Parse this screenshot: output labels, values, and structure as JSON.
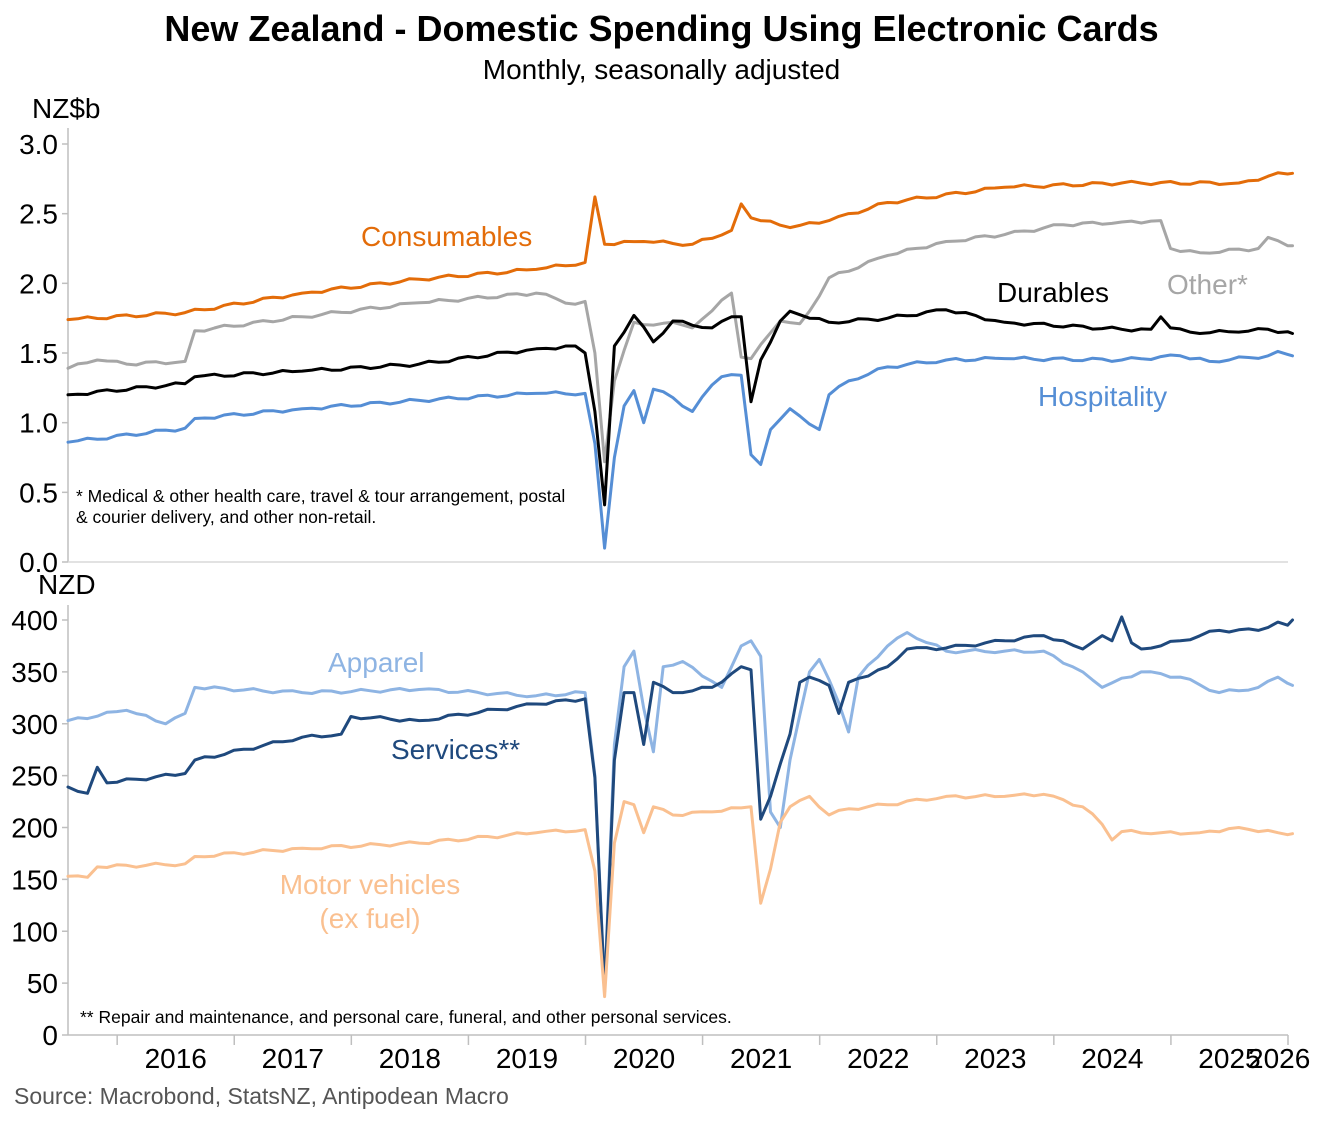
{
  "title": "New Zealand - Domestic Spending Using Electronic Cards",
  "subtitle": "Monthly, seasonally adjusted",
  "source": "Source: Macrobond, StatsNZ, Antipodean Macro",
  "colors": {
    "consumables": "#E36C09",
    "other": "#A6A6A6",
    "durables": "#000000",
    "hospitality": "#558ED5",
    "apparel": "#8EB4E3",
    "services": "#1F497D",
    "motor": "#FAC090",
    "axis": "#BFBFBF"
  },
  "chart_data": [
    {
      "type": "line",
      "panel": "top",
      "ylabel": "NZ$b",
      "ylim": [
        0,
        3.0
      ],
      "yticks": [
        "0.0",
        "0.5",
        "1.0",
        "1.5",
        "2.0",
        "2.5",
        "3.0"
      ],
      "x_start": "2015-08",
      "xlim": [
        2015.58,
        2026.0
      ],
      "footnote": "* Medical & other health care, travel & tour arrangement, postal & courier delivery, and other non-retail.",
      "series": [
        {
          "name": "Consumables",
          "key": "consumables",
          "anchors": [
            [
              0,
              1.74
            ],
            [
              12,
              1.79
            ],
            [
              24,
              1.93
            ],
            [
              36,
              2.03
            ],
            [
              48,
              2.1
            ],
            [
              53,
              2.15
            ],
            [
              54,
              2.62
            ],
            [
              55,
              2.28
            ],
            [
              59,
              2.3
            ],
            [
              64,
              2.28
            ],
            [
              68,
              2.38
            ],
            [
              69,
              2.57
            ],
            [
              70,
              2.47
            ],
            [
              74,
              2.4
            ],
            [
              78,
              2.45
            ],
            [
              84,
              2.58
            ],
            [
              96,
              2.69
            ],
            [
              108,
              2.72
            ],
            [
              120,
              2.72
            ],
            [
              124.5,
              2.79
            ],
            [
              125.5,
              2.79
            ]
          ]
        },
        {
          "name": "Other*",
          "key": "other",
          "anchors": [
            [
              0,
              1.39
            ],
            [
              3,
              1.45
            ],
            [
              6,
              1.42
            ],
            [
              12,
              1.44
            ],
            [
              13,
              1.66
            ],
            [
              24,
              1.76
            ],
            [
              36,
              1.86
            ],
            [
              48,
              1.93
            ],
            [
              52,
              1.85
            ],
            [
              53,
              1.87
            ],
            [
              54,
              1.5
            ],
            [
              55,
              0.72
            ],
            [
              56,
              1.3
            ],
            [
              58,
              1.72
            ],
            [
              60,
              1.7
            ],
            [
              62,
              1.72
            ],
            [
              64,
              1.68
            ],
            [
              67,
              1.88
            ],
            [
              68,
              1.93
            ],
            [
              69,
              1.47
            ],
            [
              70,
              1.46
            ],
            [
              73,
              1.73
            ],
            [
              75,
              1.71
            ],
            [
              76,
              1.8
            ],
            [
              78,
              2.04
            ],
            [
              84,
              2.2
            ],
            [
              90,
              2.3
            ],
            [
              96,
              2.35
            ],
            [
              102,
              2.42
            ],
            [
              108,
              2.44
            ],
            [
              112,
              2.45
            ],
            [
              113,
              2.25
            ],
            [
              116,
              2.22
            ],
            [
              122,
              2.25
            ],
            [
              123,
              2.33
            ],
            [
              125.5,
              2.27
            ]
          ]
        },
        {
          "name": "Durables",
          "key": "durables",
          "anchors": [
            [
              0,
              1.2
            ],
            [
              12,
              1.28
            ],
            [
              13,
              1.33
            ],
            [
              24,
              1.37
            ],
            [
              36,
              1.42
            ],
            [
              48,
              1.53
            ],
            [
              52,
              1.55
            ],
            [
              53,
              1.5
            ],
            [
              54,
              1.08
            ],
            [
              55,
              0.41
            ],
            [
              56,
              1.55
            ],
            [
              58,
              1.77
            ],
            [
              60,
              1.58
            ],
            [
              62,
              1.73
            ],
            [
              66,
              1.68
            ],
            [
              68,
              1.76
            ],
            [
              69,
              1.76
            ],
            [
              70,
              1.15
            ],
            [
              71,
              1.45
            ],
            [
              73,
              1.73
            ],
            [
              74,
              1.8
            ],
            [
              78,
              1.72
            ],
            [
              84,
              1.75
            ],
            [
              90,
              1.81
            ],
            [
              96,
              1.72
            ],
            [
              108,
              1.67
            ],
            [
              111,
              1.67
            ],
            [
              112,
              1.76
            ],
            [
              113,
              1.68
            ],
            [
              115,
              1.65
            ],
            [
              120,
              1.65
            ],
            [
              123,
              1.67
            ],
            [
              125.5,
              1.64
            ]
          ]
        },
        {
          "name": "Hospitality",
          "key": "hospitality",
          "anchors": [
            [
              0,
              0.86
            ],
            [
              12,
              0.96
            ],
            [
              13,
              1.03
            ],
            [
              24,
              1.1
            ],
            [
              36,
              1.16
            ],
            [
              48,
              1.21
            ],
            [
              53,
              1.21
            ],
            [
              54,
              0.85
            ],
            [
              55,
              0.1
            ],
            [
              56,
              0.75
            ],
            [
              57,
              1.12
            ],
            [
              58,
              1.23
            ],
            [
              59,
              1.0
            ],
            [
              60,
              1.24
            ],
            [
              62,
              1.18
            ],
            [
              64,
              1.08
            ],
            [
              66,
              1.27
            ],
            [
              67,
              1.33
            ],
            [
              69,
              1.34
            ],
            [
              70,
              0.77
            ],
            [
              71,
              0.7
            ],
            [
              72,
              0.95
            ],
            [
              74,
              1.1
            ],
            [
              76,
              0.99
            ],
            [
              77,
              0.95
            ],
            [
              78,
              1.2
            ],
            [
              80,
              1.3
            ],
            [
              84,
              1.4
            ],
            [
              90,
              1.45
            ],
            [
              96,
              1.46
            ],
            [
              108,
              1.45
            ],
            [
              114,
              1.48
            ],
            [
              117,
              1.44
            ],
            [
              123,
              1.48
            ],
            [
              124.5,
              1.51
            ],
            [
              125.5,
              1.48
            ]
          ]
        }
      ],
      "annotations": [
        "Consumables",
        "Other*",
        "Durables",
        "Hospitality"
      ]
    },
    {
      "type": "line",
      "panel": "bottom",
      "ylabel": "NZD",
      "ylim": [
        0,
        400
      ],
      "yticks": [
        "0",
        "50",
        "100",
        "150",
        "200",
        "250",
        "300",
        "350",
        "400"
      ],
      "x_start": "2015-08",
      "xlim": [
        2015.58,
        2026.0
      ],
      "xtick_labels": [
        "2016",
        "2017",
        "2018",
        "2019",
        "2020",
        "2021",
        "2022",
        "2023",
        "2024",
        "2025",
        "2026"
      ],
      "footnote": "** Repair and maintenance, and personal care, funeral, and other personal services.",
      "series": [
        {
          "name": "Apparel",
          "key": "apparel",
          "anchors": [
            [
              0,
              303
            ],
            [
              6,
              313
            ],
            [
              10,
              300
            ],
            [
              12,
              310
            ],
            [
              13,
              335
            ],
            [
              24,
              330
            ],
            [
              36,
              333
            ],
            [
              48,
              327
            ],
            [
              53,
              330
            ],
            [
              54,
              250
            ],
            [
              55,
              45
            ],
            [
              56,
              280
            ],
            [
              57,
              355
            ],
            [
              58,
              370
            ],
            [
              59,
              315
            ],
            [
              60,
              273
            ],
            [
              61,
              355
            ],
            [
              63,
              360
            ],
            [
              67,
              335
            ],
            [
              69,
              375
            ],
            [
              70,
              380
            ],
            [
              71,
              365
            ],
            [
              72,
              215
            ],
            [
              73,
              200
            ],
            [
              74,
              265
            ],
            [
              76,
              350
            ],
            [
              77,
              362
            ],
            [
              79,
              320
            ],
            [
              80,
              292
            ],
            [
              81,
              345
            ],
            [
              84,
              375
            ],
            [
              86,
              388
            ],
            [
              90,
              370
            ],
            [
              96,
              370
            ],
            [
              100,
              370
            ],
            [
              104,
              350
            ],
            [
              106,
              335
            ],
            [
              110,
              350
            ],
            [
              114,
              345
            ],
            [
              118,
              330
            ],
            [
              122,
              335
            ],
            [
              124,
              345
            ],
            [
              125.5,
              337
            ]
          ]
        },
        {
          "name": "Services**",
          "key": "services",
          "anchors": [
            [
              0,
              239
            ],
            [
              2,
              233
            ],
            [
              3,
              258
            ],
            [
              4,
              243
            ],
            [
              12,
              252
            ],
            [
              13,
              265
            ],
            [
              24,
              287
            ],
            [
              28,
              290
            ],
            [
              29,
              307
            ],
            [
              36,
              303
            ],
            [
              48,
              319
            ],
            [
              53,
              324
            ],
            [
              54,
              248
            ],
            [
              55,
              42
            ],
            [
              56,
              265
            ],
            [
              57,
              330
            ],
            [
              58,
              330
            ],
            [
              59,
              280
            ],
            [
              60,
              340
            ],
            [
              62,
              330
            ],
            [
              66,
              335
            ],
            [
              69,
              355
            ],
            [
              70,
              352
            ],
            [
              71,
              208
            ],
            [
              72,
              230
            ],
            [
              74,
              290
            ],
            [
              75,
              340
            ],
            [
              76,
              345
            ],
            [
              78,
              337
            ],
            [
              79,
              310
            ],
            [
              80,
              340
            ],
            [
              84,
              355
            ],
            [
              86,
              372
            ],
            [
              90,
              373
            ],
            [
              96,
              380
            ],
            [
              100,
              385
            ],
            [
              104,
              372
            ],
            [
              106,
              385
            ],
            [
              107,
              380
            ],
            [
              108,
              403
            ],
            [
              109,
              378
            ],
            [
              110,
              372
            ],
            [
              114,
              380
            ],
            [
              118,
              390
            ],
            [
              122,
              390
            ],
            [
              124,
              398
            ],
            [
              125,
              395
            ],
            [
              125.5,
              400
            ]
          ]
        },
        {
          "name": "Motor vehicles (ex fuel)",
          "key": "motor",
          "anchors": [
            [
              0,
              153
            ],
            [
              2,
              152
            ],
            [
              3,
              162
            ],
            [
              12,
              165
            ],
            [
              13,
              172
            ],
            [
              24,
              180
            ],
            [
              36,
              185
            ],
            [
              48,
              195
            ],
            [
              53,
              198
            ],
            [
              54,
              158
            ],
            [
              55,
              37
            ],
            [
              56,
              185
            ],
            [
              57,
              225
            ],
            [
              58,
              222
            ],
            [
              59,
              195
            ],
            [
              60,
              220
            ],
            [
              62,
              212
            ],
            [
              66,
              215
            ],
            [
              70,
              220
            ],
            [
              71,
              127
            ],
            [
              72,
              160
            ],
            [
              73,
              205
            ],
            [
              74,
              220
            ],
            [
              76,
              230
            ],
            [
              78,
              212
            ],
            [
              80,
              218
            ],
            [
              84,
              222
            ],
            [
              90,
              230
            ],
            [
              96,
              230
            ],
            [
              100,
              232
            ],
            [
              104,
              220
            ],
            [
              106,
              203
            ],
            [
              107,
              188
            ],
            [
              108,
              196
            ],
            [
              112,
              195
            ],
            [
              116,
              195
            ],
            [
              120,
              200
            ],
            [
              124,
              195
            ],
            [
              125.5,
              194
            ]
          ]
        }
      ],
      "annotations": [
        "Apparel",
        "Services**",
        "Motor vehicles",
        "(ex fuel)"
      ]
    }
  ]
}
